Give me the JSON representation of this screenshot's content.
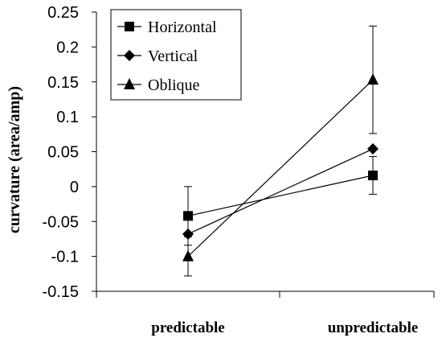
{
  "chart_data": {
    "type": "line",
    "title": "",
    "xlabel": "",
    "ylabel": "curvature (area/amp)",
    "categories": [
      "predictable",
      "unpredictable"
    ],
    "ylim": [
      -0.15,
      0.25
    ],
    "yticks": [
      0.25,
      0.2,
      0.15,
      0.1,
      0.05,
      0,
      -0.05,
      -0.1,
      -0.15
    ],
    "ytick_labels": [
      "0.25",
      "0.2",
      "0.15",
      "0.1",
      "0.05",
      "0",
      "-0.05",
      "-0.1",
      "-0.15"
    ],
    "grid": false,
    "legend_position": "top-left",
    "series": [
      {
        "name": "Horizontal",
        "marker": "square",
        "values": [
          -0.042,
          0.016
        ],
        "errors": [
          0.042,
          0.027
        ]
      },
      {
        "name": "Vertical",
        "marker": "diamond",
        "values": [
          -0.068,
          0.054
        ],
        "errors": [
          0.0,
          0.0
        ]
      },
      {
        "name": "Oblique",
        "marker": "triangle",
        "values": [
          -0.1,
          0.153
        ],
        "errors": [
          0.028,
          0.077
        ]
      }
    ],
    "colors": {
      "line": "#000000",
      "background": "#ffffff"
    }
  }
}
